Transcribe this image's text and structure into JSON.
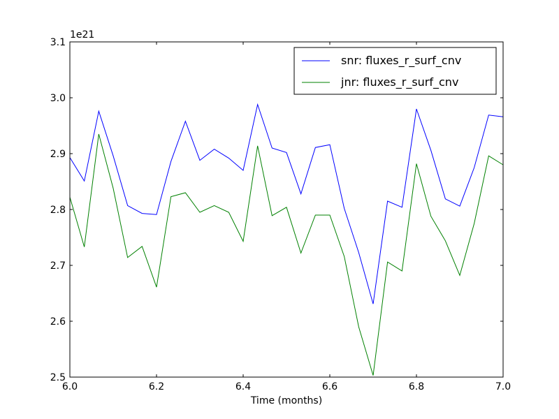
{
  "chart_data": {
    "type": "line",
    "title": "",
    "xlabel": "Time (months)",
    "ylabel": "",
    "y_offset_label": "1e21",
    "xlim": [
      6.0,
      7.0
    ],
    "ylim": [
      2.5,
      3.1
    ],
    "xticks": [
      6.0,
      6.2,
      6.4,
      6.6,
      6.8,
      7.0
    ],
    "xtick_labels": [
      "6.0",
      "6.2",
      "6.4",
      "6.6",
      "6.8",
      "7.0"
    ],
    "yticks": [
      2.5,
      2.6,
      2.7,
      2.8,
      2.9,
      3.0,
      3.1
    ],
    "ytick_labels": [
      "2.5",
      "2.6",
      "2.7",
      "2.8",
      "2.9",
      "3.0",
      "3.1"
    ],
    "grid": false,
    "legend_position": "top-right",
    "x": [
      6.0,
      6.0333,
      6.0667,
      6.1,
      6.1333,
      6.1667,
      6.2,
      6.2333,
      6.2667,
      6.3,
      6.3333,
      6.3667,
      6.4,
      6.4333,
      6.4667,
      6.5,
      6.5333,
      6.5667,
      6.6,
      6.6333,
      6.6667,
      6.7,
      6.7333,
      6.7667,
      6.8,
      6.8333,
      6.8667,
      6.9,
      6.9333,
      6.9667,
      7.0
    ],
    "series": [
      {
        "name": "snr: fluxes_r_surf_cnv",
        "color": "#0000ff",
        "values": [
          2.893,
          2.851,
          2.976,
          2.896,
          2.807,
          2.793,
          2.791,
          2.886,
          2.958,
          2.888,
          2.908,
          2.892,
          2.87,
          2.988,
          2.91,
          2.902,
          2.828,
          2.911,
          2.916,
          2.802,
          2.723,
          2.631,
          2.815,
          2.804,
          2.98,
          2.906,
          2.819,
          2.806,
          2.875,
          2.969,
          2.966
        ]
      },
      {
        "name": "jnr: fluxes_r_surf_cnv",
        "color": "#008000",
        "values": [
          2.822,
          2.733,
          2.935,
          2.838,
          2.714,
          2.734,
          2.661,
          2.823,
          2.83,
          2.795,
          2.807,
          2.795,
          2.743,
          2.914,
          2.789,
          2.804,
          2.722,
          2.79,
          2.79,
          2.716,
          2.59,
          2.503,
          2.706,
          2.69,
          2.882,
          2.788,
          2.744,
          2.682,
          2.775,
          2.896,
          2.88
        ]
      }
    ]
  }
}
